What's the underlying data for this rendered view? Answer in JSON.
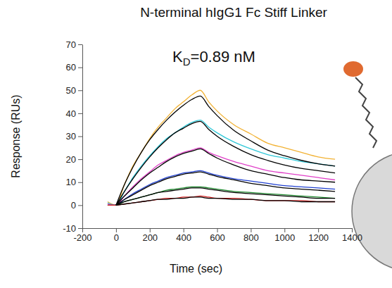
{
  "chart_data": {
    "type": "line",
    "title": "N-terminal hIgG1 Fc Stiff Linker",
    "annotation": "KD=0.89 nM",
    "x_label": "Time (sec)",
    "y_label": "Response (RUs)",
    "xlim": [
      -200,
      1400
    ],
    "ylim": [
      -10,
      70
    ],
    "xticks": [
      -200,
      0,
      200,
      400,
      600,
      800,
      1000,
      1200,
      1400
    ],
    "yticks": [
      -10,
      0,
      10,
      20,
      30,
      40,
      50,
      60,
      70
    ],
    "grid": false,
    "x": [
      -50,
      0,
      50,
      100,
      150,
      200,
      250,
      300,
      350,
      400,
      450,
      500,
      550,
      600,
      700,
      800,
      900,
      1000,
      1100,
      1200,
      1300
    ],
    "series": [
      {
        "color": "#f2b233",
        "values": [
          1.5,
          0,
          9,
          17,
          23,
          29,
          34,
          38,
          42,
          45,
          48,
          50,
          45,
          41,
          35,
          31,
          27,
          25,
          23,
          21,
          20
        ]
      },
      {
        "color": "#30c8d8",
        "values": [
          1,
          0,
          6,
          12,
          17,
          21.5,
          25.5,
          29,
          31.5,
          34,
          36,
          37,
          34,
          31.5,
          27.5,
          24.5,
          22,
          20.5,
          19,
          18,
          17
        ]
      },
      {
        "color": "#e040c8",
        "values": [
          0.5,
          0,
          4,
          8,
          11.5,
          14.5,
          17.5,
          19.5,
          21.5,
          23,
          24,
          25,
          23,
          21.5,
          19,
          17,
          15,
          14,
          13,
          12,
          11
        ]
      },
      {
        "color": "#2040d0",
        "values": [
          0,
          0,
          2.5,
          5,
          7,
          9,
          10.5,
          12,
          13,
          14,
          14.5,
          15,
          14,
          13,
          11.5,
          10.5,
          9.5,
          8.5,
          8,
          7.5,
          7
        ]
      },
      {
        "color": "#208a30",
        "values": [
          0,
          0,
          1.5,
          2.5,
          3.5,
          4.5,
          5.5,
          6.5,
          7,
          7.5,
          8,
          8,
          7.5,
          7,
          6,
          5.5,
          5,
          4.5,
          4,
          3.5,
          3
        ]
      },
      {
        "color": "#d02020",
        "values": [
          0,
          0,
          0.5,
          1,
          1.5,
          2,
          2.5,
          3,
          3,
          3.5,
          3.5,
          4,
          3.5,
          3,
          3,
          2.5,
          2,
          2,
          2,
          1.5,
          1.5
        ]
      },
      {
        "color": "#000000",
        "values": [
          null,
          0,
          9,
          16.5,
          23,
          28.5,
          33,
          37,
          40.5,
          43.5,
          46,
          47.5,
          43,
          39,
          32.5,
          28,
          24,
          21.5,
          19.5,
          18,
          17
        ]
      },
      {
        "color": "#000000",
        "values": [
          null,
          0,
          6,
          11.5,
          16.5,
          21,
          25,
          28.5,
          31.5,
          33.5,
          35.5,
          36.5,
          33,
          30,
          25.5,
          22,
          19.5,
          17.5,
          16,
          15,
          14
        ]
      },
      {
        "color": "#000000",
        "values": [
          null,
          0,
          4,
          7.5,
          11,
          14,
          16.5,
          19,
          21,
          22.5,
          23.5,
          24.5,
          22.5,
          20.5,
          17.5,
          15,
          13.5,
          12,
          11,
          10.5,
          10
        ]
      },
      {
        "color": "#000000",
        "values": [
          null,
          0,
          2.5,
          4.5,
          6.5,
          8.5,
          10,
          11.5,
          12.5,
          13.5,
          14,
          14.5,
          13.5,
          12.5,
          11,
          9.5,
          8.5,
          7.5,
          7,
          6.5,
          6
        ]
      },
      {
        "color": "#000000",
        "values": [
          null,
          0,
          1.5,
          2.5,
          3.5,
          4.5,
          5.5,
          6,
          6.5,
          7,
          7.5,
          7.5,
          7,
          6.5,
          5.5,
          5,
          4.5,
          4,
          3.5,
          3,
          3
        ]
      },
      {
        "color": "#000000",
        "values": [
          null,
          0,
          0.5,
          1,
          1.5,
          2,
          2.5,
          2.5,
          3,
          3,
          3.5,
          3.5,
          3,
          3,
          2.5,
          2.5,
          2,
          2,
          1.5,
          1.5,
          1.5
        ]
      }
    ]
  }
}
